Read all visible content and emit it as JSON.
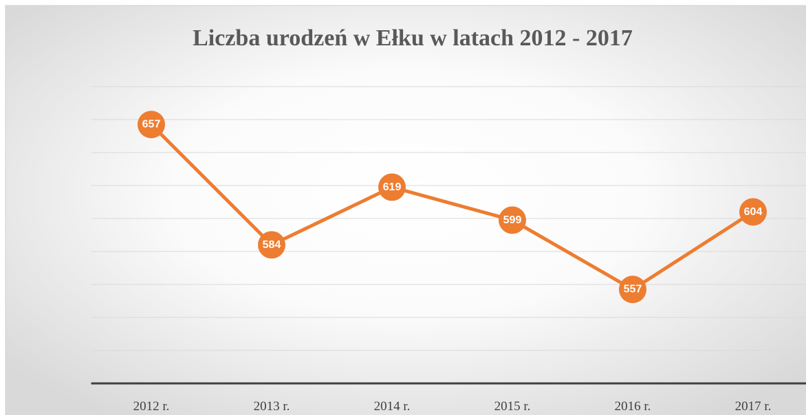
{
  "chart_data": {
    "type": "line",
    "title": "Liczba urodzeń w Ełku w latach 2012 - 2017",
    "categories": [
      "2012 r.",
      "2013 r.",
      "2014 r.",
      "2015 r.",
      "2016 r.",
      "2017 r."
    ],
    "values": [
      657,
      584,
      619,
      599,
      557,
      604
    ],
    "color": "#ed7d31",
    "ylim": [
      500,
      680
    ],
    "yticks": [
      500,
      520,
      540,
      560,
      580,
      600,
      620,
      640,
      660,
      680
    ],
    "grid": true
  }
}
